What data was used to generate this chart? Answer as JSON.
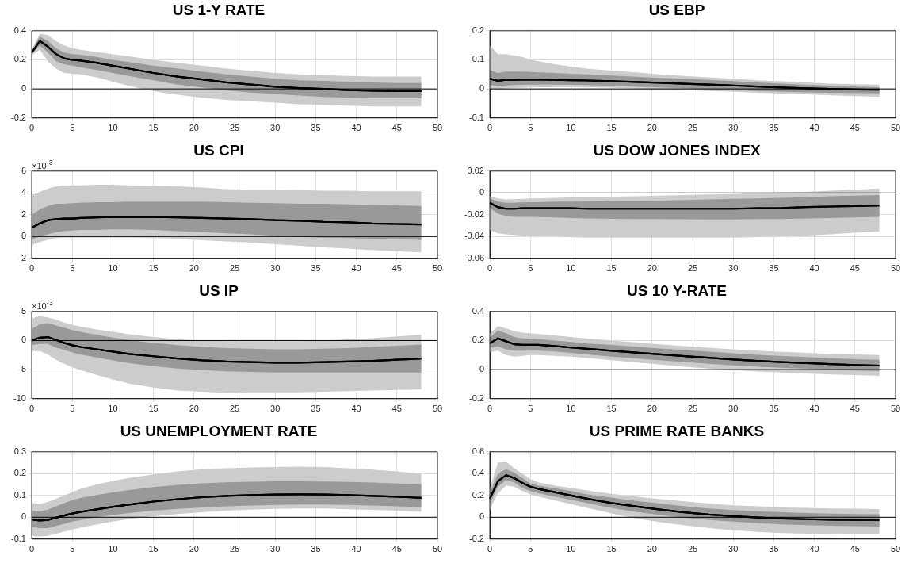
{
  "chart_data": [
    {
      "type": "line",
      "title": "US 1-Y RATE",
      "x": [
        0,
        1,
        2,
        3,
        4,
        5,
        6,
        8,
        10,
        12,
        15,
        18,
        21,
        24,
        27,
        30,
        33,
        36,
        39,
        42,
        45,
        48
      ],
      "xlim": [
        0,
        50
      ],
      "xticks": [
        0,
        5,
        10,
        15,
        20,
        25,
        30,
        35,
        40,
        45,
        50
      ],
      "ylim": [
        -0.2,
        0.4
      ],
      "yticks": [
        -0.2,
        0,
        0.2,
        0.4
      ],
      "grid": true,
      "ref_lines": [
        {
          "axis": "y",
          "value": 0,
          "color": "#000000"
        }
      ],
      "series": [
        {
          "color": "#cccccc",
          "values": [
            null,
            null,
            null,
            null,
            null,
            null,
            null,
            null,
            null,
            null,
            null,
            null,
            null,
            null,
            null,
            null,
            null,
            null,
            null,
            null,
            null,
            null
          ],
          "lower": [
            0.23,
            0.27,
            0.19,
            0.14,
            0.11,
            0.105,
            0.1,
            0.08,
            0.05,
            0.02,
            -0.015,
            -0.04,
            -0.06,
            -0.075,
            -0.085,
            -0.095,
            -0.105,
            -0.11,
            -0.115,
            -0.12,
            -0.12,
            -0.12
          ],
          "upper": [
            0.27,
            0.38,
            0.37,
            0.33,
            0.3,
            0.28,
            0.27,
            0.255,
            0.24,
            0.225,
            0.2,
            0.18,
            0.16,
            0.14,
            0.125,
            0.11,
            0.1,
            0.095,
            0.09,
            0.085,
            0.085,
            0.085
          ]
        },
        {
          "color": "#999999",
          "values": [
            null,
            null,
            null,
            null,
            null,
            null,
            null,
            null,
            null,
            null,
            null,
            null,
            null,
            null,
            null,
            null,
            null,
            null,
            null,
            null,
            null,
            null
          ],
          "lower": [
            0.24,
            0.3,
            0.25,
            0.19,
            0.17,
            0.16,
            0.15,
            0.13,
            0.11,
            0.09,
            0.06,
            0.03,
            0.01,
            -0.01,
            -0.025,
            -0.035,
            -0.045,
            -0.055,
            -0.06,
            -0.065,
            -0.065,
            -0.065
          ],
          "upper": [
            0.26,
            0.36,
            0.33,
            0.28,
            0.25,
            0.24,
            0.235,
            0.22,
            0.2,
            0.185,
            0.16,
            0.14,
            0.12,
            0.1,
            0.085,
            0.07,
            0.06,
            0.055,
            0.05,
            0.045,
            0.04,
            0.04
          ]
        },
        {
          "color": "#000000",
          "values": [
            0.25,
            0.33,
            0.29,
            0.24,
            0.21,
            0.2,
            0.195,
            0.18,
            0.16,
            0.14,
            0.11,
            0.085,
            0.065,
            0.045,
            0.03,
            0.015,
            0.005,
            0,
            -0.008,
            -0.012,
            -0.015,
            -0.015
          ]
        }
      ]
    },
    {
      "type": "line",
      "title": "US EBP",
      "x": [
        0,
        1,
        2,
        3,
        4,
        5,
        6,
        8,
        10,
        12,
        15,
        18,
        21,
        24,
        27,
        30,
        33,
        36,
        39,
        42,
        45,
        48
      ],
      "xlim": [
        0,
        50
      ],
      "xticks": [
        0,
        5,
        10,
        15,
        20,
        25,
        30,
        35,
        40,
        45,
        50
      ],
      "ylim": [
        -0.1,
        0.2
      ],
      "yticks": [
        -0.1,
        0,
        0.1,
        0.2
      ],
      "grid": true,
      "ref_lines": [
        {
          "axis": "y",
          "value": 0,
          "color": "#000000"
        }
      ],
      "series": [
        {
          "color": "#cccccc",
          "values": [
            null,
            null,
            null,
            null,
            null,
            null,
            null,
            null,
            null,
            null,
            null,
            null,
            null,
            null,
            null,
            null,
            null,
            null,
            null,
            null,
            null,
            null
          ],
          "lower": [
            0,
            0,
            0.002,
            0.003,
            0.004,
            0.005,
            0.006,
            0.006,
            0.006,
            0.005,
            0.004,
            0.002,
            -0.001,
            -0.004,
            -0.007,
            -0.01,
            -0.013,
            -0.016,
            -0.019,
            -0.022,
            -0.025,
            -0.027
          ],
          "upper": [
            0.15,
            0.12,
            0.12,
            0.115,
            0.11,
            0.1,
            0.095,
            0.085,
            0.077,
            0.07,
            0.063,
            0.057,
            0.05,
            0.045,
            0.04,
            0.035,
            0.03,
            0.026,
            0.022,
            0.018,
            0.016,
            0.015
          ]
        },
        {
          "color": "#999999",
          "values": [
            null,
            null,
            null,
            null,
            null,
            null,
            null,
            null,
            null,
            null,
            null,
            null,
            null,
            null,
            null,
            null,
            null,
            null,
            null,
            null,
            null,
            null
          ],
          "lower": [
            0.015,
            0.008,
            0.012,
            0.013,
            0.014,
            0.015,
            0.015,
            0.015,
            0.014,
            0.013,
            0.011,
            0.008,
            0.005,
            0.002,
            -0.001,
            -0.004,
            -0.007,
            -0.01,
            -0.012,
            -0.013,
            -0.014,
            -0.015
          ],
          "upper": [
            0.065,
            0.055,
            0.06,
            0.06,
            0.06,
            0.058,
            0.057,
            0.055,
            0.052,
            0.05,
            0.046,
            0.042,
            0.038,
            0.035,
            0.031,
            0.027,
            0.022,
            0.018,
            0.014,
            0.011,
            0.008,
            0.006
          ]
        },
        {
          "color": "#000000",
          "values": [
            0.035,
            0.028,
            0.031,
            0.031,
            0.032,
            0.032,
            0.032,
            0.031,
            0.03,
            0.029,
            0.027,
            0.024,
            0.021,
            0.018,
            0.015,
            0.012,
            0.008,
            0.005,
            0.002,
            0,
            -0.002,
            -0.003
          ]
        }
      ]
    },
    {
      "type": "line",
      "title": "US CPI",
      "annotations": [
        "×10$^{-3}$"
      ],
      "x": [
        0,
        1,
        2,
        3,
        4,
        5,
        6,
        8,
        10,
        12,
        15,
        18,
        21,
        24,
        27,
        30,
        33,
        36,
        39,
        42,
        45,
        48
      ],
      "xlim": [
        0,
        50
      ],
      "xticks": [
        0,
        5,
        10,
        15,
        20,
        25,
        30,
        35,
        40,
        45,
        50
      ],
      "ylim": [
        -2,
        6
      ],
      "yticks": [
        -2,
        0,
        2,
        4,
        6
      ],
      "grid": true,
      "ref_lines": [
        {
          "axis": "y",
          "value": 0,
          "color": "#000000"
        }
      ],
      "series": [
        {
          "color": "#cccccc",
          "values": [
            null,
            null,
            null,
            null,
            null,
            null,
            null,
            null,
            null,
            null,
            null,
            null,
            null,
            null,
            null,
            null,
            null,
            null,
            null,
            null,
            null,
            null
          ],
          "lower": [
            -0.8,
            -0.5,
            -0.3,
            -0.15,
            -0.1,
            -0.1,
            -0.1,
            -0.1,
            -0.1,
            -0.1,
            -0.15,
            -0.2,
            -0.35,
            -0.45,
            -0.55,
            -0.7,
            -0.85,
            -1,
            -1.1,
            -1.25,
            -1.35,
            -1.45
          ],
          "upper": [
            3.8,
            4.1,
            4.4,
            4.6,
            4.7,
            4.7,
            4.7,
            4.75,
            4.75,
            4.7,
            4.65,
            4.6,
            4.5,
            4.35,
            4.3,
            4.3,
            4.25,
            4.2,
            4.2,
            4.15,
            4.15,
            4.15
          ]
        },
        {
          "color": "#999999",
          "values": [
            null,
            null,
            null,
            null,
            null,
            null,
            null,
            null,
            null,
            null,
            null,
            null,
            null,
            null,
            null,
            null,
            null,
            null,
            null,
            null,
            null,
            null
          ],
          "lower": [
            -0.3,
            0,
            0.2,
            0.4,
            0.5,
            0.55,
            0.6,
            0.6,
            0.65,
            0.65,
            0.6,
            0.5,
            0.4,
            0.3,
            0.2,
            0.05,
            -0.05,
            -0.1,
            -0.15,
            -0.2,
            -0.25,
            -0.3
          ],
          "upper": [
            2,
            2.5,
            2.8,
            3,
            3,
            3.05,
            3.1,
            3.15,
            3.15,
            3.2,
            3.2,
            3.2,
            3.2,
            3.15,
            3.1,
            3.05,
            3,
            3,
            2.95,
            2.9,
            2.85,
            2.8
          ]
        },
        {
          "color": "#000000",
          "values": [
            0.8,
            1.2,
            1.5,
            1.6,
            1.65,
            1.65,
            1.7,
            1.75,
            1.8,
            1.8,
            1.8,
            1.75,
            1.7,
            1.65,
            1.6,
            1.5,
            1.45,
            1.35,
            1.3,
            1.2,
            1.15,
            1.1
          ]
        }
      ]
    },
    {
      "type": "line",
      "title": "US DOW JONES INDEX",
      "x": [
        0,
        1,
        2,
        3,
        4,
        5,
        6,
        8,
        10,
        12,
        15,
        18,
        21,
        24,
        27,
        30,
        33,
        36,
        39,
        42,
        45,
        48
      ],
      "xlim": [
        0,
        50
      ],
      "xticks": [
        0,
        5,
        10,
        15,
        20,
        25,
        30,
        35,
        40,
        45,
        50
      ],
      "ylim": [
        -0.06,
        0.02
      ],
      "yticks": [
        -0.06,
        -0.04,
        -0.02,
        0,
        0.02
      ],
      "grid": true,
      "ref_lines": [
        {
          "axis": "y",
          "value": 0,
          "color": "#000000"
        }
      ],
      "series": [
        {
          "color": "#cccccc",
          "values": [
            null,
            null,
            null,
            null,
            null,
            null,
            null,
            null,
            null,
            null,
            null,
            null,
            null,
            null,
            null,
            null,
            null,
            null,
            null,
            null,
            null,
            null
          ],
          "lower": [
            -0.034,
            -0.037,
            -0.038,
            -0.0385,
            -0.039,
            -0.0395,
            -0.04,
            -0.04,
            -0.0405,
            -0.041,
            -0.041,
            -0.041,
            -0.041,
            -0.041,
            -0.041,
            -0.041,
            -0.0405,
            -0.04,
            -0.039,
            -0.038,
            -0.0365,
            -0.0355
          ],
          "upper": [
            -0.003,
            -0.005,
            -0.006,
            -0.0057,
            -0.0055,
            -0.005,
            -0.005,
            -0.0045,
            -0.0042,
            -0.004,
            -0.0035,
            -0.003,
            -0.0025,
            -0.002,
            -0.0015,
            -0.001,
            0,
            0.0005,
            0.001,
            0.002,
            0.003,
            0.004
          ]
        },
        {
          "color": "#999999",
          "values": [
            null,
            null,
            null,
            null,
            null,
            null,
            null,
            null,
            null,
            null,
            null,
            null,
            null,
            null,
            null,
            null,
            null,
            null,
            null,
            null,
            null,
            null
          ],
          "lower": [
            -0.014,
            -0.019,
            -0.021,
            -0.022,
            -0.022,
            -0.022,
            -0.0222,
            -0.0225,
            -0.023,
            -0.0235,
            -0.0237,
            -0.024,
            -0.024,
            -0.0242,
            -0.0243,
            -0.0243,
            -0.024,
            -0.024,
            -0.0235,
            -0.023,
            -0.0225,
            -0.022
          ],
          "upper": [
            -0.005,
            -0.008,
            -0.009,
            -0.009,
            -0.0085,
            -0.0085,
            -0.0085,
            -0.008,
            -0.008,
            -0.0078,
            -0.0075,
            -0.0072,
            -0.007,
            -0.0065,
            -0.006,
            -0.0055,
            -0.005,
            -0.0045,
            -0.004,
            -0.003,
            -0.0025,
            -0.002
          ]
        },
        {
          "color": "#000000",
          "values": [
            -0.009,
            -0.013,
            -0.0145,
            -0.0145,
            -0.014,
            -0.014,
            -0.014,
            -0.014,
            -0.014,
            -0.0145,
            -0.0145,
            -0.0145,
            -0.0145,
            -0.0145,
            -0.0145,
            -0.0145,
            -0.014,
            -0.0138,
            -0.013,
            -0.0125,
            -0.012,
            -0.0115
          ]
        }
      ]
    },
    {
      "type": "line",
      "title": "US IP",
      "annotations": [
        "×10$^{-3}$"
      ],
      "x": [
        0,
        1,
        2,
        3,
        4,
        5,
        6,
        8,
        10,
        12,
        15,
        18,
        21,
        24,
        27,
        30,
        33,
        36,
        39,
        42,
        45,
        48
      ],
      "xlim": [
        0,
        50
      ],
      "xticks": [
        0,
        5,
        10,
        15,
        20,
        25,
        30,
        35,
        40,
        45,
        50
      ],
      "ylim": [
        -10,
        5
      ],
      "yticks": [
        -10,
        -5,
        0,
        5
      ],
      "grid": true,
      "ref_lines": [
        {
          "axis": "y",
          "value": 0,
          "color": "#000000"
        }
      ],
      "series": [
        {
          "color": "#cccccc",
          "values": [
            null,
            null,
            null,
            null,
            null,
            null,
            null,
            null,
            null,
            null,
            null,
            null,
            null,
            null,
            null,
            null,
            null,
            null,
            null,
            null,
            null,
            null
          ],
          "lower": [
            -1.8,
            -1.8,
            -2.4,
            -3.3,
            -4,
            -4.6,
            -5.1,
            -5.9,
            -6.7,
            -7.4,
            -8.1,
            -8.6,
            -8.8,
            -9,
            -8.9,
            -8.9,
            -8.9,
            -8.8,
            -8.7,
            -8.6,
            -8.5,
            -8.4
          ],
          "upper": [
            3.8,
            4.2,
            4,
            3.6,
            3.1,
            2.7,
            2.4,
            1.9,
            1.5,
            1.1,
            0.6,
            0.2,
            0,
            -0.1,
            -0.1,
            -0.1,
            -0.1,
            0,
            0.2,
            0.4,
            0.7,
            1
          ]
        },
        {
          "color": "#999999",
          "values": [
            null,
            null,
            null,
            null,
            null,
            null,
            null,
            null,
            null,
            null,
            null,
            null,
            null,
            null,
            null,
            null,
            null,
            null,
            null,
            null,
            null,
            null
          ],
          "lower": [
            -0.8,
            -0.6,
            -0.6,
            -1.2,
            -1.6,
            -2,
            -2.4,
            -2.9,
            -3.4,
            -3.9,
            -4.4,
            -4.8,
            -5.1,
            -5.3,
            -5.4,
            -5.5,
            -5.5,
            -5.5,
            -5.5,
            -5.5,
            -5.5,
            -5.5
          ],
          "upper": [
            2,
            2.8,
            3,
            2.6,
            2.2,
            1.8,
            1.5,
            1,
            0.5,
            0.1,
            -0.4,
            -0.8,
            -1.1,
            -1.3,
            -1.4,
            -1.5,
            -1.5,
            -1.4,
            -1.3,
            -1.1,
            -0.9,
            -0.7
          ]
        },
        {
          "color": "#000000",
          "values": [
            0,
            0.5,
            0.6,
            0.1,
            -0.4,
            -0.8,
            -1.1,
            -1.5,
            -1.9,
            -2.3,
            -2.7,
            -3.1,
            -3.4,
            -3.6,
            -3.7,
            -3.8,
            -3.8,
            -3.7,
            -3.6,
            -3.5,
            -3.3,
            -3.1
          ]
        }
      ]
    },
    {
      "type": "line",
      "title": "US 10 Y-RATE",
      "x": [
        0,
        1,
        2,
        3,
        4,
        5,
        6,
        8,
        10,
        12,
        15,
        18,
        21,
        24,
        27,
        30,
        33,
        36,
        39,
        42,
        45,
        48
      ],
      "xlim": [
        0,
        50
      ],
      "xticks": [
        0,
        5,
        10,
        15,
        20,
        25,
        30,
        35,
        40,
        45,
        50
      ],
      "ylim": [
        -0.2,
        0.4
      ],
      "yticks": [
        -0.2,
        0,
        0.2,
        0.4
      ],
      "grid": true,
      "ref_lines": [
        {
          "axis": "y",
          "value": 0,
          "color": "#000000"
        }
      ],
      "series": [
        {
          "color": "#cccccc",
          "values": [
            null,
            null,
            null,
            null,
            null,
            null,
            null,
            null,
            null,
            null,
            null,
            null,
            null,
            null,
            null,
            null,
            null,
            null,
            null,
            null,
            null,
            null
          ],
          "lower": [
            0.12,
            0.13,
            0.1,
            0.09,
            0.095,
            0.1,
            0.1,
            0.095,
            0.09,
            0.08,
            0.065,
            0.05,
            0.035,
            0.02,
            0.008,
            -0.003,
            -0.013,
            -0.02,
            -0.027,
            -0.033,
            -0.038,
            -0.043
          ],
          "upper": [
            0.25,
            0.3,
            0.285,
            0.265,
            0.255,
            0.25,
            0.245,
            0.235,
            0.225,
            0.214,
            0.2,
            0.187,
            0.174,
            0.162,
            0.151,
            0.14,
            0.13,
            0.122,
            0.115,
            0.109,
            0.104,
            0.1
          ]
        },
        {
          "color": "#999999",
          "values": [
            null,
            null,
            null,
            null,
            null,
            null,
            null,
            null,
            null,
            null,
            null,
            null,
            null,
            null,
            null,
            null,
            null,
            null,
            null,
            null,
            null,
            null
          ],
          "lower": [
            0.15,
            0.16,
            0.14,
            0.13,
            0.13,
            0.13,
            0.13,
            0.125,
            0.115,
            0.105,
            0.09,
            0.077,
            0.064,
            0.052,
            0.04,
            0.03,
            0.02,
            0.013,
            0.006,
            0,
            -0.006,
            -0.01
          ],
          "upper": [
            0.22,
            0.27,
            0.25,
            0.225,
            0.215,
            0.212,
            0.21,
            0.2,
            0.19,
            0.18,
            0.17,
            0.157,
            0.145,
            0.134,
            0.123,
            0.112,
            0.102,
            0.094,
            0.086,
            0.079,
            0.072,
            0.067
          ]
        },
        {
          "color": "#000000",
          "values": [
            0.18,
            0.215,
            0.195,
            0.175,
            0.17,
            0.17,
            0.17,
            0.162,
            0.152,
            0.143,
            0.13,
            0.117,
            0.105,
            0.093,
            0.082,
            0.07,
            0.06,
            0.052,
            0.045,
            0.038,
            0.032,
            0.028
          ]
        }
      ]
    },
    {
      "type": "line",
      "title": "US UNEMPLOYMENT RATE",
      "x": [
        0,
        1,
        2,
        3,
        4,
        5,
        6,
        8,
        10,
        12,
        15,
        18,
        21,
        24,
        27,
        30,
        33,
        36,
        39,
        42,
        45,
        48
      ],
      "xlim": [
        0,
        50
      ],
      "xticks": [
        0,
        5,
        10,
        15,
        20,
        25,
        30,
        35,
        40,
        45,
        50
      ],
      "ylim": [
        -0.1,
        0.3
      ],
      "yticks": [
        -0.1,
        0,
        0.1,
        0.2,
        0.3
      ],
      "grid": true,
      "ref_lines": [
        {
          "axis": "y",
          "value": 0,
          "color": "#000000"
        }
      ],
      "series": [
        {
          "color": "#cccccc",
          "values": [
            null,
            null,
            null,
            null,
            null,
            null,
            null,
            null,
            null,
            null,
            null,
            null,
            null,
            null,
            null,
            null,
            null,
            null,
            null,
            null,
            null,
            null
          ],
          "lower": [
            -0.085,
            -0.088,
            -0.085,
            -0.076,
            -0.066,
            -0.057,
            -0.048,
            -0.033,
            -0.02,
            -0.008,
            0.005,
            0.015,
            0.023,
            0.03,
            0.035,
            0.038,
            0.04,
            0.04,
            0.037,
            0.034,
            0.03,
            0.025
          ],
          "upper": [
            0.065,
            0.06,
            0.07,
            0.085,
            0.1,
            0.115,
            0.13,
            0.15,
            0.167,
            0.18,
            0.197,
            0.21,
            0.22,
            0.225,
            0.228,
            0.23,
            0.232,
            0.23,
            0.225,
            0.218,
            0.21,
            0.2
          ]
        },
        {
          "color": "#999999",
          "values": [
            null,
            null,
            null,
            null,
            null,
            null,
            null,
            null,
            null,
            null,
            null,
            null,
            null,
            null,
            null,
            null,
            null,
            null,
            null,
            null,
            null,
            null
          ],
          "lower": [
            -0.045,
            -0.05,
            -0.05,
            -0.04,
            -0.03,
            -0.02,
            -0.013,
            0,
            0.01,
            0.019,
            0.03,
            0.038,
            0.045,
            0.05,
            0.054,
            0.057,
            0.058,
            0.058,
            0.057,
            0.054,
            0.05,
            0.045
          ],
          "upper": [
            0.03,
            0.027,
            0.035,
            0.05,
            0.065,
            0.078,
            0.088,
            0.102,
            0.114,
            0.125,
            0.138,
            0.148,
            0.156,
            0.16,
            0.163,
            0.165,
            0.165,
            0.164,
            0.162,
            0.159,
            0.155,
            0.152
          ]
        },
        {
          "color": "#000000",
          "values": [
            -0.01,
            -0.015,
            -0.012,
            -0.002,
            0.008,
            0.017,
            0.024,
            0.036,
            0.048,
            0.058,
            0.072,
            0.083,
            0.092,
            0.098,
            0.102,
            0.104,
            0.105,
            0.104,
            0.102,
            0.098,
            0.094,
            0.089
          ]
        }
      ]
    },
    {
      "type": "line",
      "title": "US PRIME RATE BANKS",
      "x": [
        0,
        1,
        2,
        3,
        4,
        5,
        6,
        8,
        10,
        12,
        15,
        18,
        21,
        24,
        27,
        30,
        33,
        36,
        39,
        42,
        45,
        48
      ],
      "xlim": [
        0,
        50
      ],
      "xticks": [
        0,
        5,
        10,
        15,
        20,
        25,
        30,
        35,
        40,
        45,
        50
      ],
      "ylim": [
        -0.2,
        0.6
      ],
      "yticks": [
        -0.2,
        0,
        0.2,
        0.4,
        0.6
      ],
      "grid": true,
      "ref_lines": [
        {
          "axis": "y",
          "value": 0,
          "color": "#000000"
        }
      ],
      "series": [
        {
          "color": "#cccccc",
          "values": [
            null,
            null,
            null,
            null,
            null,
            null,
            null,
            null,
            null,
            null,
            null,
            null,
            null,
            null,
            null,
            null,
            null,
            null,
            null,
            null,
            null,
            null
          ],
          "lower": [
            0.07,
            0.22,
            0.29,
            0.28,
            0.24,
            0.21,
            0.19,
            0.155,
            0.12,
            0.085,
            0.035,
            -0.01,
            -0.045,
            -0.075,
            -0.1,
            -0.12,
            -0.135,
            -0.145,
            -0.15,
            -0.152,
            -0.155,
            -0.155
          ],
          "upper": [
            0.26,
            0.5,
            0.51,
            0.45,
            0.4,
            0.35,
            0.32,
            0.29,
            0.27,
            0.245,
            0.215,
            0.19,
            0.165,
            0.145,
            0.125,
            0.11,
            0.1,
            0.09,
            0.085,
            0.08,
            0.078,
            0.075
          ]
        },
        {
          "color": "#999999",
          "values": [
            null,
            null,
            null,
            null,
            null,
            null,
            null,
            null,
            null,
            null,
            null,
            null,
            null,
            null,
            null,
            null,
            null,
            null,
            null,
            null,
            null,
            null
          ],
          "lower": [
            0.12,
            0.28,
            0.34,
            0.32,
            0.27,
            0.24,
            0.22,
            0.19,
            0.16,
            0.13,
            0.085,
            0.05,
            0.02,
            -0.005,
            -0.025,
            -0.04,
            -0.055,
            -0.065,
            -0.072,
            -0.078,
            -0.082,
            -0.085
          ],
          "upper": [
            0.22,
            0.4,
            0.44,
            0.41,
            0.36,
            0.31,
            0.29,
            0.265,
            0.24,
            0.21,
            0.18,
            0.15,
            0.125,
            0.1,
            0.08,
            0.065,
            0.055,
            0.045,
            0.038,
            0.033,
            0.03,
            0.028
          ]
        },
        {
          "color": "#000000",
          "values": [
            0.17,
            0.33,
            0.385,
            0.36,
            0.315,
            0.28,
            0.26,
            0.23,
            0.2,
            0.17,
            0.13,
            0.1,
            0.07,
            0.045,
            0.025,
            0.01,
            -0.002,
            -0.012,
            -0.018,
            -0.022,
            -0.024,
            -0.025
          ]
        }
      ]
    }
  ]
}
